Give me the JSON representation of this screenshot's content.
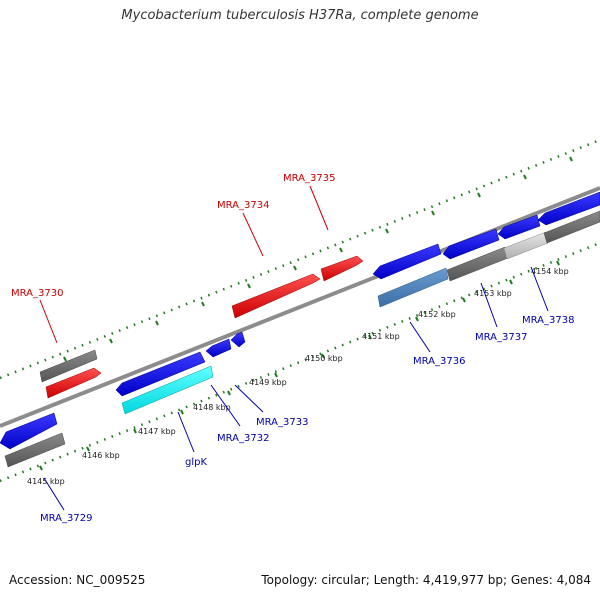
{
  "title": "Mycobacterium tuberculosis H37Ra, complete genome",
  "footer": {
    "accession": "Accession: NC_009525",
    "summary": "Topology: circular; Length: 4,419,977 bp; Genes: 4,084"
  },
  "colors": {
    "forward_gene": "#ff0000",
    "reverse_gene": "#0000ff",
    "cds": "#666666",
    "backbone": "#8c8c8c",
    "tick_marks": "#1f7a1f",
    "label_forward": "#cc0000",
    "label_reverse": "#0000aa"
  },
  "ticks": [
    "4145 kbp",
    "4146 kbp",
    "4147 kbp",
    "4148 kbp",
    "4149 kbp",
    "4150 kbp",
    "4151 kbp",
    "4152 kbp",
    "4153 kbp",
    "4154 kbp"
  ],
  "labels": {
    "mra_3729": "MRA_3729",
    "mra_3730": "MRA_3730",
    "glpk": "glpK",
    "mra_3732": "MRA_3732",
    "mra_3733": "MRA_3733",
    "mra_3734": "MRA_3734",
    "mra_3735": "MRA_3735",
    "mra_3736": "MRA_3736",
    "mra_3737": "MRA_3737",
    "mra_3738": "MRA_3738"
  }
}
